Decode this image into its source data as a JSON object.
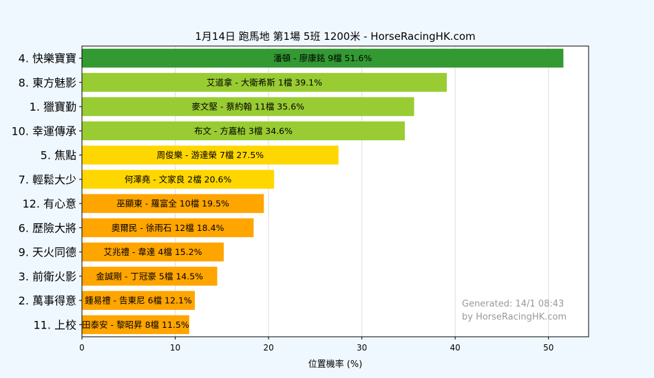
{
  "chart_data": {
    "type": "bar",
    "orientation": "horizontal",
    "title": "1月14日  跑馬地  第1場  5班  1200米 - HorseRacingHK.com",
    "xlabel": "位置機率 (%)",
    "ylabel": "",
    "xlim": [
      0,
      54.3
    ],
    "xticks": [
      0,
      10,
      20,
      30,
      40,
      50
    ],
    "grid": true,
    "categories": [
      "4. 快樂寶寶",
      "8. 東方魅影",
      "1. 獵寶勤",
      "10. 幸運傳承",
      "5. 焦點",
      "7. 輕鬆大少",
      "12. 有心意",
      "6. 歷險大將",
      "9. 天火同德",
      "3. 前衛火影",
      "2. 萬事得意",
      "11. 上校"
    ],
    "values": [
      51.6,
      39.1,
      35.6,
      34.6,
      27.5,
      20.6,
      19.5,
      18.4,
      15.2,
      14.5,
      12.1,
      11.5
    ],
    "bar_labels": [
      "潘頓 - 廖康銘 9檔  51.6%",
      "艾道拿 - 大衛希斯 1檔  39.1%",
      "麥文堅 - 蔡約翰 11檔  35.6%",
      "布文 - 方嘉柏 3檔  34.6%",
      "周俊樂 - 游達榮 7檔  27.5%",
      "何澤堯 - 文家良 2檔  20.6%",
      "巫顯東 - 羅富全 10檔  19.5%",
      "奧爾民 - 徐雨石 12檔  18.4%",
      "艾兆禮 - 韋達 4檔  15.2%",
      "金誠剛 - 丁冠豪 5檔  14.5%",
      "鍾易禮 - 告東尼 6檔  12.1%",
      "田泰安 - 黎昭昇 8檔  11.5%"
    ],
    "colors": [
      "#339933",
      "#99cc33",
      "#99cc33",
      "#99cc33",
      "#ffd700",
      "#ffd700",
      "#ffa500",
      "#ffa500",
      "#ffa500",
      "#ffa500",
      "#ffa500",
      "#ffa500"
    ],
    "annotations": [
      "Generated: 14/1 08:43",
      "by HorseRacingHK.com"
    ]
  },
  "style": {
    "background": "#f0f8ff",
    "plot_background": "#ffffff",
    "grid_color": "#dddddd",
    "watermark_color": "#999999"
  }
}
